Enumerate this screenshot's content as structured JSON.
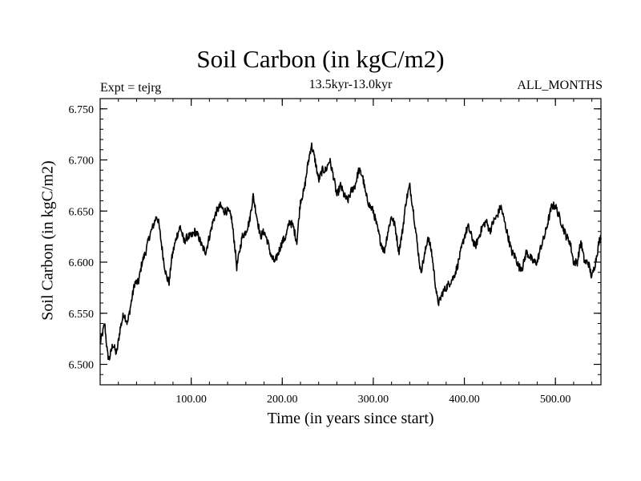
{
  "chart_data": {
    "type": "line",
    "title": "Soil Carbon (in kgC/m2)",
    "subtitle": "13.5kyr-13.0kyr",
    "annotation_left": "Expt = tejrg",
    "annotation_right": "ALL_MONTHS",
    "xlabel": "Time (in years since start)",
    "ylabel": "Soil Carbon (in kgC/m2)",
    "xlim": [
      0,
      550
    ],
    "ylim": [
      6.48,
      6.76
    ],
    "xticks": [
      {
        "value": 100,
        "label": "100.00"
      },
      {
        "value": 200,
        "label": "200.00"
      },
      {
        "value": 300,
        "label": "300.00"
      },
      {
        "value": 400,
        "label": "400.00"
      },
      {
        "value": 500,
        "label": "500.00"
      }
    ],
    "yticks": [
      {
        "value": 6.5,
        "label": "6.500"
      },
      {
        "value": 6.55,
        "label": "6.550"
      },
      {
        "value": 6.6,
        "label": "6.600"
      },
      {
        "value": 6.65,
        "label": "6.650"
      },
      {
        "value": 6.7,
        "label": "6.700"
      },
      {
        "value": 6.75,
        "label": "6.750"
      }
    ],
    "x_minor_step": 20,
    "y_minor_step": 0.01,
    "noise_amplitude": 0.004,
    "series": [
      {
        "name": "Soil Carbon",
        "x": [
          0,
          5,
          8,
          10,
          14,
          18,
          22,
          26,
          30,
          34,
          38,
          42,
          46,
          50,
          54,
          58,
          62,
          64,
          67,
          70,
          73,
          76,
          78,
          80,
          84,
          88,
          92,
          96,
          100,
          104,
          108,
          112,
          116,
          120,
          124,
          128,
          132,
          136,
          140,
          144,
          148,
          150,
          152,
          156,
          160,
          164,
          168,
          172,
          176,
          180,
          184,
          188,
          192,
          196,
          200,
          204,
          208,
          212,
          216,
          220,
          224,
          228,
          232,
          236,
          240,
          244,
          248,
          252,
          256,
          260,
          264,
          268,
          272,
          276,
          280,
          284,
          288,
          292,
          296,
          300,
          304,
          308,
          312,
          316,
          320,
          324,
          328,
          332,
          336,
          340,
          344,
          348,
          352,
          356,
          360,
          364,
          368,
          370,
          372,
          376,
          380,
          384,
          388,
          392,
          396,
          400,
          404,
          408,
          412,
          416,
          420,
          424,
          428,
          432,
          436,
          440,
          444,
          448,
          452,
          456,
          460,
          464,
          468,
          472,
          476,
          480,
          484,
          488,
          492,
          496,
          500,
          504,
          508,
          512,
          516,
          520,
          524,
          528,
          532,
          536,
          540,
          544,
          548,
          550
        ],
        "y": [
          6.52,
          6.54,
          6.51,
          6.505,
          6.52,
          6.51,
          6.535,
          6.55,
          6.54,
          6.56,
          6.58,
          6.58,
          6.6,
          6.61,
          6.625,
          6.635,
          6.645,
          6.64,
          6.62,
          6.6,
          6.585,
          6.58,
          6.6,
          6.61,
          6.625,
          6.635,
          6.62,
          6.625,
          6.625,
          6.63,
          6.625,
          6.615,
          6.61,
          6.625,
          6.64,
          6.65,
          6.655,
          6.65,
          6.65,
          6.645,
          6.615,
          6.595,
          6.605,
          6.625,
          6.63,
          6.64,
          6.665,
          6.645,
          6.625,
          6.63,
          6.62,
          6.605,
          6.6,
          6.61,
          6.62,
          6.625,
          6.64,
          6.635,
          6.62,
          6.66,
          6.67,
          6.695,
          6.715,
          6.7,
          6.68,
          6.69,
          6.69,
          6.7,
          6.685,
          6.665,
          6.675,
          6.665,
          6.66,
          6.67,
          6.675,
          6.69,
          6.685,
          6.665,
          6.655,
          6.65,
          6.635,
          6.62,
          6.61,
          6.63,
          6.645,
          6.635,
          6.61,
          6.63,
          6.66,
          6.675,
          6.65,
          6.62,
          6.59,
          6.605,
          6.625,
          6.61,
          6.58,
          6.565,
          6.56,
          6.57,
          6.575,
          6.58,
          6.585,
          6.595,
          6.61,
          6.625,
          6.635,
          6.625,
          6.615,
          6.625,
          6.635,
          6.64,
          6.63,
          6.64,
          6.645,
          6.655,
          6.64,
          6.625,
          6.61,
          6.605,
          6.595,
          6.595,
          6.61,
          6.605,
          6.6,
          6.6,
          6.615,
          6.625,
          6.64,
          6.655,
          6.655,
          6.645,
          6.635,
          6.625,
          6.62,
          6.6,
          6.6,
          6.62,
          6.6,
          6.6,
          6.585,
          6.6,
          6.62,
          6.625
        ]
      }
    ]
  }
}
